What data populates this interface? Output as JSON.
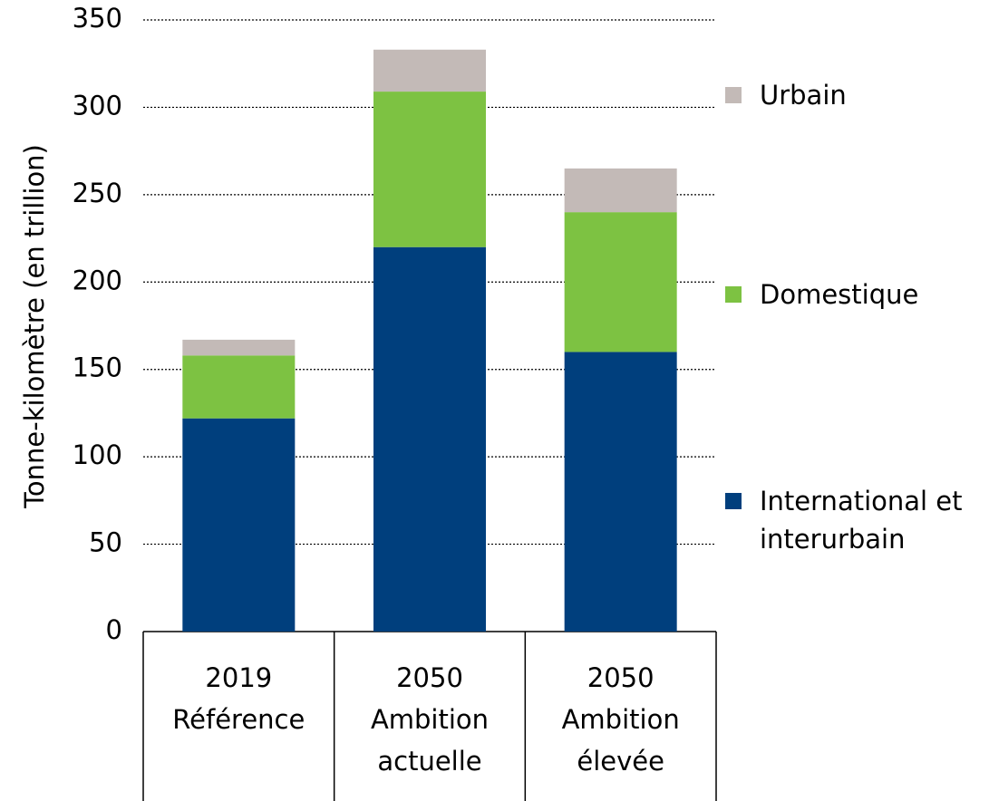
{
  "chart_data": {
    "type": "stacked_bar",
    "y_label": "Tonne-kilomètre (en trillion)",
    "categories": [
      "2019",
      "2050",
      "2050"
    ],
    "subcategories": [
      "Référence",
      "Ambition actuelle",
      "Ambition élevée"
    ],
    "series": [
      {
        "name": "International et interurbain",
        "color": "#003f7d",
        "values": [
          122,
          220,
          160
        ]
      },
      {
        "name": "Domestique",
        "color": "#7dc242",
        "values": [
          36,
          89,
          80
        ]
      },
      {
        "name": "Urbain",
        "color": "#c3bab7",
        "values": [
          9,
          24,
          25
        ]
      }
    ],
    "ylim": [
      0,
      350
    ],
    "yticks": [
      0,
      50,
      100,
      150,
      200,
      250,
      300,
      350
    ],
    "grid": true,
    "legend": "right"
  }
}
